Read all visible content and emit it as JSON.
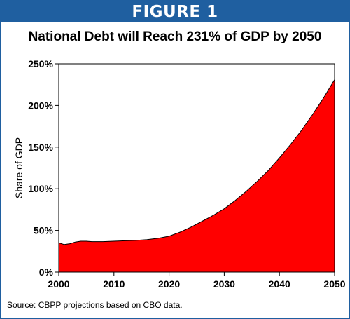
{
  "figure_label": "FIGURE 1",
  "source_note": "Source: CBPP projections based on CBO data.",
  "colors": {
    "frame": "#1f5fa0",
    "area_fill": "#ff0000",
    "area_line": "#000000"
  },
  "chart_data": {
    "type": "area",
    "title": "National Debt will Reach 231% of GDP by 2050",
    "xlabel": "",
    "ylabel": "Share of GDP",
    "xlim": [
      2000,
      2050
    ],
    "ylim": [
      0,
      250
    ],
    "x_ticks": [
      2000,
      2010,
      2020,
      2030,
      2040,
      2050
    ],
    "y_ticks": [
      0,
      50,
      100,
      150,
      200,
      250
    ],
    "y_tick_labels": [
      "0%",
      "50%",
      "100%",
      "150%",
      "200%",
      "250%"
    ],
    "grid": false,
    "legend": "none",
    "series": [
      {
        "x": [
          2000,
          2001,
          2002,
          2003,
          2004,
          2005,
          2006,
          2007,
          2008,
          2010,
          2012,
          2014,
          2016,
          2018,
          2020,
          2022,
          2024,
          2026,
          2028,
          2030,
          2032,
          2034,
          2036,
          2038,
          2040,
          2042,
          2044,
          2046,
          2048,
          2050
        ],
        "values": [
          35,
          33,
          34,
          36,
          37,
          37,
          36.5,
          36.5,
          36.5,
          37,
          37.5,
          38,
          39,
          40.5,
          43,
          48,
          54,
          61,
          68,
          76,
          86,
          97,
          109,
          122,
          137,
          153,
          170,
          189,
          209,
          231
        ]
      }
    ]
  }
}
